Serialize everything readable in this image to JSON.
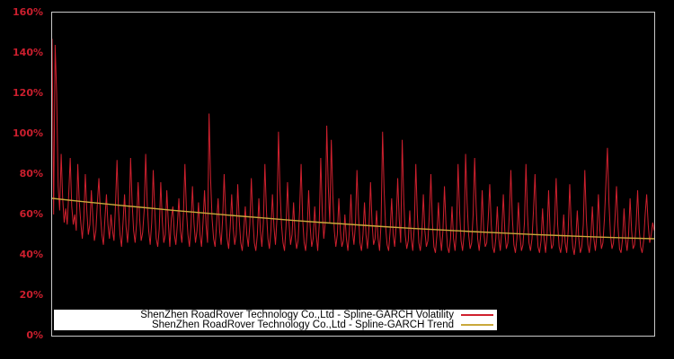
{
  "window": {
    "background": "#000000"
  },
  "colors": {
    "volatility_line": "#cf202e",
    "trend_line": "#c9a83b",
    "axis_label": "#cc1f2e",
    "plot_border": "#c9c9c9",
    "legend_background": "#ffffff",
    "legend_text": "#000000"
  },
  "chart_data": {
    "type": "line",
    "title": "",
    "xlabel": "",
    "ylabel": "",
    "ylim": [
      0,
      160
    ],
    "yticks": [
      "0%",
      "20%",
      "40%",
      "60%",
      "80%",
      "100%",
      "120%",
      "140%",
      "160%"
    ],
    "xticks": [],
    "grid": false,
    "legend_position": "bottom",
    "series": [
      {
        "name": "ShenZhen RoadRover Technology Co.,Ltd - Spline-GARCH Volatility",
        "color": "#cf202e",
        "unit": "percent",
        "values": [
          147,
          60,
          144,
          120,
          74,
          62,
          90,
          68,
          56,
          63,
          55,
          70,
          88,
          64,
          55,
          60,
          52,
          85,
          66,
          56,
          48,
          58,
          80,
          62,
          50,
          55,
          72,
          58,
          47,
          52,
          66,
          78,
          60,
          50,
          45,
          58,
          70,
          55,
          48,
          60,
          52,
          47,
          65,
          87,
          62,
          50,
          44,
          56,
          70,
          54,
          46,
          58,
          88,
          66,
          52,
          46,
          56,
          76,
          58,
          47,
          51,
          62,
          90,
          66,
          52,
          45,
          56,
          82,
          62,
          48,
          44,
          53,
          76,
          57,
          46,
          50,
          72,
          56,
          44,
          58,
          64,
          50,
          45,
          55,
          68,
          52,
          46,
          60,
          85,
          62,
          50,
          44,
          54,
          74,
          56,
          46,
          52,
          66,
          50,
          44,
          56,
          72,
          55,
          46,
          110,
          78,
          58,
          48,
          44,
          56,
          68,
          52,
          45,
          58,
          80,
          60,
          48,
          43,
          54,
          70,
          53,
          45,
          50,
          75,
          57,
          46,
          42,
          52,
          64,
          50,
          44,
          55,
          78,
          58,
          46,
          42,
          50,
          68,
          52,
          44,
          56,
          85,
          62,
          48,
          43,
          52,
          70,
          54,
          45,
          58,
          101,
          72,
          55,
          46,
          42,
          54,
          76,
          56,
          45,
          50,
          66,
          50,
          43,
          47,
          62,
          85,
          58,
          46,
          42,
          52,
          72,
          54,
          44,
          48,
          64,
          50,
          42,
          55,
          88,
          62,
          48,
          56,
          104,
          74,
          56,
          97,
          70,
          52,
          44,
          50,
          68,
          52,
          44,
          47,
          60,
          48,
          42,
          52,
          70,
          52,
          45,
          55,
          82,
          60,
          46,
          42,
          50,
          66,
          50,
          43,
          54,
          76,
          56,
          45,
          48,
          62,
          48,
          42,
          56,
          101,
          72,
          54,
          45,
          42,
          52,
          68,
          50,
          44,
          55,
          78,
          58,
          46,
          97,
          68,
          50,
          43,
          47,
          62,
          48,
          42,
          54,
          85,
          60,
          46,
          42,
          50,
          70,
          52,
          44,
          47,
          60,
          80,
          56,
          44,
          41,
          50,
          66,
          50,
          42,
          52,
          74,
          55,
          44,
          41,
          48,
          64,
          48,
          42,
          52,
          85,
          62,
          47,
          42,
          50,
          90,
          66,
          50,
          43,
          46,
          60,
          88,
          64,
          48,
          42,
          50,
          72,
          52,
          44,
          46,
          58,
          75,
          55,
          44,
          41,
          48,
          64,
          48,
          42,
          52,
          70,
          52,
          43,
          46,
          60,
          82,
          58,
          45,
          41,
          48,
          66,
          50,
          42,
          45,
          56,
          85,
          60,
          46,
          42,
          48,
          62,
          80,
          56,
          44,
          41,
          47,
          63,
          48,
          41,
          50,
          72,
          52,
          43,
          45,
          56,
          78,
          55,
          44,
          41,
          47,
          60,
          46,
          41,
          52,
          75,
          55,
          44,
          40,
          47,
          62,
          48,
          41,
          44,
          55,
          82,
          58,
          45,
          41,
          48,
          64,
          48,
          42,
          50,
          70,
          52,
          43,
          46,
          58,
          76,
          93,
          66,
          50,
          43,
          46,
          58,
          74,
          54,
          43,
          41,
          48,
          63,
          48,
          42,
          50,
          68,
          52,
          43,
          45,
          55,
          72,
          53,
          44,
          41,
          47,
          60,
          70,
          55,
          46,
          50,
          56,
          52
        ]
      },
      {
        "name": "ShenZhen RoadRover Technology Co.,Ltd - Spline-GARCH Trend",
        "color": "#c9a83b",
        "unit": "percent",
        "values": [
          68.0,
          66.4,
          64.9,
          63.5,
          62.1,
          60.8,
          59.5,
          58.3,
          57.1,
          56.0,
          55.0,
          54.0,
          53.1,
          52.3,
          51.5,
          50.8,
          50.1,
          49.5,
          48.9,
          48.4,
          48.0
        ]
      }
    ]
  },
  "legend": {
    "rows": [
      {
        "label": "ShenZhen RoadRover Technology Co.,Ltd - Spline-GARCH Volatility"
      },
      {
        "label": "ShenZhen RoadRover Technology Co.,Ltd - Spline-GARCH Trend"
      }
    ]
  }
}
